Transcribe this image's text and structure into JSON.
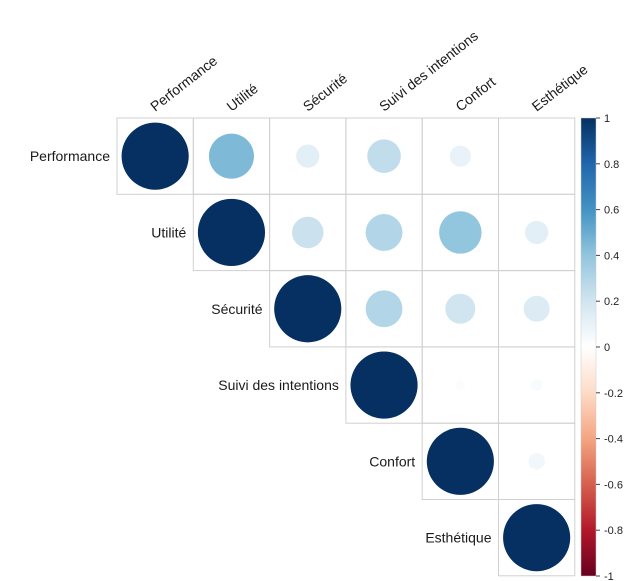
{
  "chart_data": {
    "type": "heatmap",
    "variables": [
      "Performance",
      "Utilité",
      "Sécurité",
      "Suivi des intentions",
      "Confort",
      "Esthétique"
    ],
    "layout": "upper-triangle",
    "glyph": "circle",
    "matrix": [
      [
        1.0,
        0.45,
        0.12,
        0.25,
        0.1,
        0.0
      ],
      [
        0.45,
        1.0,
        0.22,
        0.3,
        0.4,
        0.12
      ],
      [
        0.12,
        0.22,
        1.0,
        0.3,
        0.2,
        0.15
      ],
      [
        0.25,
        0.3,
        0.3,
        1.0,
        0.02,
        0.03
      ],
      [
        0.1,
        0.4,
        0.2,
        0.02,
        1.0,
        0.06
      ],
      [
        0.0,
        0.12,
        0.15,
        0.03,
        0.06,
        1.0
      ]
    ],
    "colorbar": {
      "range": [
        -1,
        1
      ],
      "ticks": [
        "1",
        "0.8",
        "0.6",
        "0.4",
        "0.2",
        "0",
        "-0.2",
        "-0.4",
        "-0.6",
        "-0.8",
        "-1"
      ],
      "colors": {
        "neg": "#67001F",
        "neg_mid": "#D6604D",
        "zero": "#FFFFFF",
        "pos_mid": "#4393C3",
        "pos": "#053061"
      }
    },
    "grid": true,
    "title": "",
    "xlabel": "",
    "ylabel": ""
  }
}
